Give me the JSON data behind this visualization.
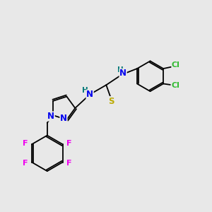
{
  "bg_color": "#e8e8e8",
  "bond_color": "#000000",
  "atom_colors": {
    "N": "#0000ee",
    "S": "#bbaa00",
    "F": "#ee00ee",
    "Cl": "#33bb33",
    "H_label": "#007777",
    "C": "#000000"
  },
  "figsize": [
    3.0,
    3.0
  ],
  "dpi": 100
}
